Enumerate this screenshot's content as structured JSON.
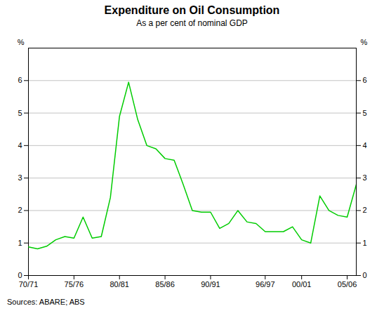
{
  "chart_data": {
    "type": "line",
    "title": "Expenditure on Oil Consumption",
    "subtitle": "As a per cent of nominal GDP",
    "source": "Sources: ABARE; ABS",
    "ylabel": "%",
    "y2label": "%",
    "x": [
      1970,
      1971,
      1972,
      1973,
      1974,
      1975,
      1976,
      1977,
      1978,
      1979,
      1980,
      1981,
      1982,
      1983,
      1984,
      1985,
      1986,
      1987,
      1988,
      1989,
      1990,
      1991,
      1992,
      1993,
      1994,
      1995,
      1996,
      1997,
      1998,
      1999,
      2000,
      2001,
      2002,
      2003,
      2004,
      2005,
      2006
    ],
    "values": [
      0.88,
      0.82,
      0.9,
      1.1,
      1.2,
      1.15,
      1.8,
      1.15,
      1.2,
      2.4,
      4.9,
      5.95,
      4.8,
      4.0,
      3.9,
      3.6,
      3.55,
      2.8,
      2.0,
      1.95,
      1.95,
      1.45,
      1.6,
      2.0,
      1.65,
      1.6,
      1.35,
      1.35,
      1.35,
      1.5,
      1.1,
      1.0,
      2.45,
      2.0,
      1.85,
      1.8,
      2.8
    ],
    "color": "#00CC00",
    "xlim": [
      1970,
      2006
    ],
    "xticks": [
      {
        "value": 1970,
        "label": "70/71"
      },
      {
        "value": 1975,
        "label": "75/76"
      },
      {
        "value": 1980,
        "label": "80/81"
      },
      {
        "value": 1985,
        "label": "85/86"
      },
      {
        "value": 1990,
        "label": "90/91"
      },
      {
        "value": 1996,
        "label": "96/97"
      },
      {
        "value": 2000,
        "label": "00/01"
      },
      {
        "value": 2005,
        "label": "05/06"
      }
    ],
    "ylim": [
      0,
      7
    ],
    "yticks": [
      0,
      1,
      2,
      3,
      4,
      5,
      6
    ],
    "y2lim": [
      0,
      7
    ],
    "y2ticks": [
      0,
      1,
      2,
      3,
      4,
      5,
      6
    ],
    "grid": "y"
  }
}
